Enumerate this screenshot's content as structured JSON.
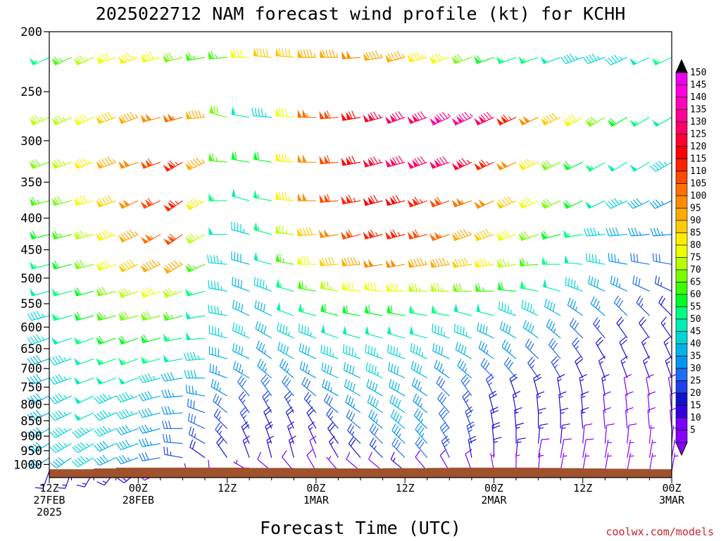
{
  "chart_data": {
    "type": "wind_barb_time_height",
    "title": "2025022712 NAM forecast wind profile (kt) for KCHH",
    "xlabel": "Forecast Time (UTC)",
    "ylabel": "",
    "credit": "coolwx.com/models",
    "y_axis": {
      "scale": "log",
      "range_hpa": [
        1050,
        200
      ],
      "ticks": [
        "200",
        "250",
        "300",
        "350",
        "400",
        "450",
        "500",
        "550",
        "600",
        "650",
        "700",
        "750",
        "800",
        "850",
        "900",
        "950",
        "1000"
      ]
    },
    "x_axis": {
      "range_hours": [
        0,
        84
      ],
      "step_hours": 3,
      "ticks": [
        {
          "hour": 0,
          "lines": [
            "12Z",
            "27FEB",
            "2025"
          ]
        },
        {
          "hour": 12,
          "lines": [
            "00Z",
            "28FEB"
          ]
        },
        {
          "hour": 24,
          "lines": [
            "12Z"
          ]
        },
        {
          "hour": 36,
          "lines": [
            "00Z",
            "1MAR"
          ]
        },
        {
          "hour": 48,
          "lines": [
            "12Z"
          ]
        },
        {
          "hour": 60,
          "lines": [
            "00Z",
            "2MAR"
          ]
        },
        {
          "hour": 72,
          "lines": [
            "12Z"
          ]
        },
        {
          "hour": 84,
          "lines": [
            "00Z",
            "3MAR"
          ]
        }
      ]
    },
    "levels_hpa": [
      220,
      275,
      325,
      375,
      425,
      475,
      525,
      575,
      625,
      675,
      725,
      775,
      825,
      875,
      925,
      975,
      1025
    ],
    "speeds_kt": [
      [
        55,
        65,
        75,
        80,
        85,
        80,
        70,
        65,
        65,
        80,
        90,
        90,
        95,
        95,
        100,
        95,
        95,
        85,
        80,
        70,
        60,
        55,
        55,
        50,
        45,
        45,
        45,
        50,
        55
      ],
      [
        75,
        75,
        80,
        90,
        95,
        100,
        105,
        95,
        70,
        50,
        45,
        80,
        105,
        110,
        120,
        125,
        130,
        130,
        135,
        135,
        130,
        115,
        100,
        90,
        80,
        70,
        60,
        55,
        50
      ],
      [
        70,
        75,
        85,
        95,
        100,
        110,
        115,
        95,
        65,
        60,
        60,
        85,
        100,
        110,
        120,
        125,
        130,
        130,
        130,
        125,
        115,
        100,
        85,
        70,
        60,
        55,
        50,
        50,
        45
      ],
      [
        65,
        70,
        80,
        90,
        100,
        110,
        115,
        85,
        55,
        50,
        55,
        85,
        100,
        110,
        115,
        120,
        120,
        115,
        110,
        105,
        100,
        90,
        80,
        70,
        60,
        50,
        45,
        40,
        35
      ],
      [
        60,
        65,
        75,
        85,
        95,
        105,
        110,
        75,
        50,
        45,
        55,
        75,
        90,
        100,
        110,
        115,
        115,
        110,
        105,
        95,
        90,
        80,
        70,
        60,
        55,
        45,
        40,
        35,
        35
      ],
      [
        55,
        60,
        70,
        80,
        90,
        95,
        95,
        65,
        45,
        40,
        50,
        65,
        80,
        90,
        95,
        100,
        100,
        95,
        95,
        90,
        85,
        75,
        65,
        55,
        50,
        45,
        35,
        30,
        30
      ],
      [
        50,
        55,
        60,
        70,
        75,
        80,
        75,
        55,
        45,
        40,
        45,
        55,
        65,
        75,
        80,
        80,
        80,
        75,
        75,
        70,
        65,
        60,
        55,
        50,
        45,
        40,
        35,
        30,
        25
      ],
      [
        45,
        55,
        60,
        65,
        70,
        70,
        65,
        50,
        45,
        40,
        40,
        50,
        55,
        60,
        60,
        60,
        60,
        55,
        55,
        50,
        50,
        45,
        45,
        40,
        35,
        35,
        30,
        25,
        20
      ],
      [
        45,
        50,
        55,
        60,
        60,
        60,
        55,
        50,
        45,
        45,
        40,
        45,
        45,
        50,
        50,
        50,
        50,
        50,
        45,
        45,
        40,
        40,
        40,
        35,
        30,
        25,
        20,
        20,
        15
      ],
      [
        40,
        45,
        50,
        55,
        55,
        55,
        50,
        45,
        40,
        40,
        35,
        40,
        40,
        45,
        45,
        45,
        45,
        45,
        40,
        40,
        35,
        35,
        30,
        30,
        25,
        20,
        20,
        15,
        15
      ],
      [
        40,
        45,
        50,
        50,
        50,
        45,
        40,
        40,
        35,
        35,
        35,
        35,
        35,
        40,
        40,
        45,
        40,
        40,
        35,
        35,
        30,
        30,
        25,
        25,
        20,
        15,
        15,
        15,
        15
      ],
      [
        40,
        45,
        50,
        45,
        45,
        40,
        35,
        35,
        35,
        30,
        30,
        30,
        30,
        35,
        40,
        40,
        40,
        35,
        30,
        30,
        25,
        20,
        20,
        15,
        15,
        15,
        10,
        10,
        10
      ],
      [
        40,
        45,
        50,
        45,
        45,
        40,
        35,
        30,
        30,
        25,
        25,
        25,
        25,
        30,
        35,
        40,
        40,
        35,
        30,
        25,
        20,
        15,
        15,
        15,
        15,
        10,
        10,
        10,
        10
      ],
      [
        40,
        45,
        45,
        45,
        40,
        35,
        30,
        30,
        25,
        25,
        20,
        20,
        20,
        25,
        30,
        35,
        40,
        35,
        30,
        25,
        20,
        15,
        15,
        15,
        15,
        10,
        10,
        10,
        10
      ],
      [
        40,
        45,
        45,
        40,
        40,
        35,
        30,
        25,
        25,
        20,
        20,
        15,
        15,
        20,
        25,
        30,
        35,
        35,
        30,
        25,
        20,
        15,
        15,
        15,
        10,
        10,
        10,
        5,
        5
      ],
      [
        35,
        40,
        45,
        40,
        35,
        30,
        25,
        20,
        20,
        15,
        15,
        15,
        10,
        15,
        20,
        25,
        30,
        30,
        25,
        20,
        15,
        15,
        10,
        10,
        10,
        5,
        5,
        5,
        5
      ],
      [
        15,
        15,
        15,
        15,
        15,
        10,
        10,
        10,
        10,
        5,
        10,
        10,
        10,
        5,
        10,
        10,
        15,
        10,
        10,
        10,
        5,
        5,
        5,
        5,
        5,
        5,
        5,
        5,
        5
      ]
    ],
    "directions_deg": [
      [
        245,
        245,
        245,
        250,
        250,
        255,
        255,
        260,
        265,
        270,
        275,
        275,
        270,
        270,
        265,
        260,
        255,
        255,
        250,
        250,
        250,
        250,
        250,
        250,
        250,
        250,
        245,
        245,
        245
      ],
      [
        245,
        245,
        245,
        250,
        250,
        255,
        255,
        265,
        285,
        280,
        275,
        275,
        270,
        265,
        260,
        255,
        250,
        250,
        245,
        245,
        245,
        245,
        245,
        245,
        240,
        240,
        240,
        240,
        240
      ],
      [
        250,
        250,
        250,
        250,
        250,
        250,
        240,
        245,
        275,
        280,
        280,
        275,
        270,
        265,
        260,
        255,
        255,
        250,
        250,
        245,
        245,
        245,
        245,
        245,
        245,
        240,
        240,
        240,
        240
      ],
      [
        255,
        255,
        255,
        250,
        245,
        245,
        235,
        240,
        270,
        285,
        280,
        275,
        270,
        265,
        260,
        255,
        255,
        250,
        250,
        250,
        245,
        245,
        245,
        245,
        245,
        245,
        245,
        245,
        245
      ],
      [
        255,
        255,
        255,
        250,
        245,
        240,
        235,
        240,
        270,
        285,
        285,
        275,
        265,
        260,
        255,
        255,
        255,
        255,
        250,
        250,
        250,
        250,
        250,
        255,
        260,
        265,
        265,
        265,
        265
      ],
      [
        255,
        255,
        255,
        250,
        245,
        245,
        240,
        245,
        275,
        285,
        285,
        280,
        270,
        265,
        265,
        260,
        260,
        260,
        260,
        260,
        260,
        260,
        265,
        270,
        275,
        280,
        280,
        280,
        280
      ],
      [
        255,
        255,
        255,
        255,
        250,
        250,
        250,
        255,
        280,
        290,
        290,
        285,
        280,
        280,
        275,
        275,
        270,
        270,
        270,
        270,
        270,
        275,
        280,
        285,
        290,
        295,
        295,
        295,
        295
      ],
      [
        255,
        255,
        255,
        255,
        255,
        255,
        255,
        260,
        280,
        295,
        295,
        290,
        285,
        285,
        280,
        280,
        280,
        280,
        280,
        285,
        285,
        290,
        295,
        300,
        305,
        310,
        315,
        315,
        315
      ],
      [
        250,
        250,
        250,
        250,
        250,
        255,
        260,
        265,
        285,
        295,
        300,
        295,
        290,
        290,
        285,
        285,
        285,
        285,
        290,
        290,
        295,
        300,
        305,
        310,
        315,
        320,
        325,
        325,
        325
      ],
      [
        250,
        250,
        250,
        250,
        250,
        255,
        260,
        265,
        285,
        295,
        305,
        300,
        295,
        290,
        290,
        290,
        290,
        295,
        295,
        300,
        305,
        310,
        315,
        320,
        325,
        330,
        335,
        335,
        335
      ],
      [
        250,
        250,
        250,
        250,
        250,
        255,
        260,
        270,
        290,
        300,
        310,
        310,
        300,
        295,
        295,
        295,
        295,
        300,
        305,
        310,
        315,
        320,
        325,
        330,
        335,
        340,
        340,
        340,
        340
      ],
      [
        245,
        245,
        245,
        245,
        250,
        255,
        265,
        280,
        300,
        320,
        325,
        320,
        310,
        300,
        300,
        300,
        300,
        305,
        315,
        325,
        335,
        340,
        345,
        350,
        350,
        350,
        350,
        350,
        350
      ],
      [
        245,
        245,
        245,
        245,
        250,
        255,
        265,
        290,
        310,
        325,
        330,
        330,
        320,
        310,
        305,
        305,
        305,
        310,
        320,
        330,
        345,
        350,
        355,
        355,
        355,
        355,
        355,
        355,
        355
      ],
      [
        240,
        240,
        240,
        245,
        250,
        255,
        270,
        295,
        315,
        330,
        335,
        335,
        330,
        320,
        310,
        310,
        310,
        315,
        325,
        340,
        350,
        355,
        0,
        0,
        355,
        355,
        355,
        355,
        355
      ],
      [
        240,
        240,
        240,
        245,
        250,
        260,
        275,
        300,
        320,
        335,
        340,
        340,
        335,
        325,
        315,
        315,
        315,
        320,
        330,
        345,
        355,
        0,
        5,
        5,
        5,
        5,
        5,
        5,
        5
      ],
      [
        235,
        235,
        240,
        245,
        250,
        260,
        280,
        305,
        325,
        340,
        345,
        345,
        340,
        330,
        320,
        315,
        315,
        320,
        335,
        350,
        0,
        5,
        10,
        10,
        10,
        10,
        10,
        10,
        10
      ],
      [
        200,
        200,
        210,
        220,
        230,
        240,
        250,
        270,
        280,
        300,
        310,
        320,
        330,
        320,
        310,
        310,
        310,
        320,
        330,
        340,
        350,
        0,
        5,
        10,
        10,
        10,
        10,
        10,
        10
      ]
    ],
    "terrain_hpa": [
      1018,
      1018,
      1015,
      1012,
      1012,
      1012,
      1012,
      1012,
      1012,
      1013,
      1013,
      1014,
      1014,
      1015,
      1015,
      1014,
      1014,
      1013,
      1012,
      1012,
      1012,
      1012,
      1013,
      1014,
      1015,
      1016,
      1017,
      1018,
      1018
    ],
    "colorbar": {
      "ticks": [
        150,
        145,
        140,
        135,
        130,
        125,
        120,
        115,
        110,
        105,
        100,
        95,
        90,
        85,
        80,
        75,
        70,
        65,
        60,
        55,
        50,
        45,
        40,
        35,
        30,
        25,
        20,
        15,
        10,
        5
      ],
      "colors": {
        "5": "#8800ff",
        "10": "#7a00ff",
        "15": "#3300dd",
        "20": "#1111cc",
        "25": "#1f3fe8",
        "30": "#1f6ef0",
        "35": "#0096f0",
        "40": "#00b4e8",
        "45": "#00d6d6",
        "50": "#00eeb6",
        "55": "#00ff80",
        "60": "#00ff20",
        "65": "#3cff00",
        "70": "#77ff00",
        "75": "#b8ff00",
        "80": "#eeff00",
        "85": "#ffee00",
        "90": "#ffcc00",
        "95": "#ffaa00",
        "100": "#ff8c00",
        "105": "#ff7000",
        "110": "#ff4a00",
        "115": "#ff2200",
        "120": "#ff0000",
        "125": "#ff0033",
        "130": "#ff0066",
        "135": "#ff0099",
        "140": "#ff00bb",
        "145": "#ff00dd",
        "150": "#ee00ee"
      },
      "top_arrow_color": "#000000",
      "bottom_arrow_color": "#8800ff"
    },
    "terrain_color": "#a0522d",
    "grid": false
  }
}
